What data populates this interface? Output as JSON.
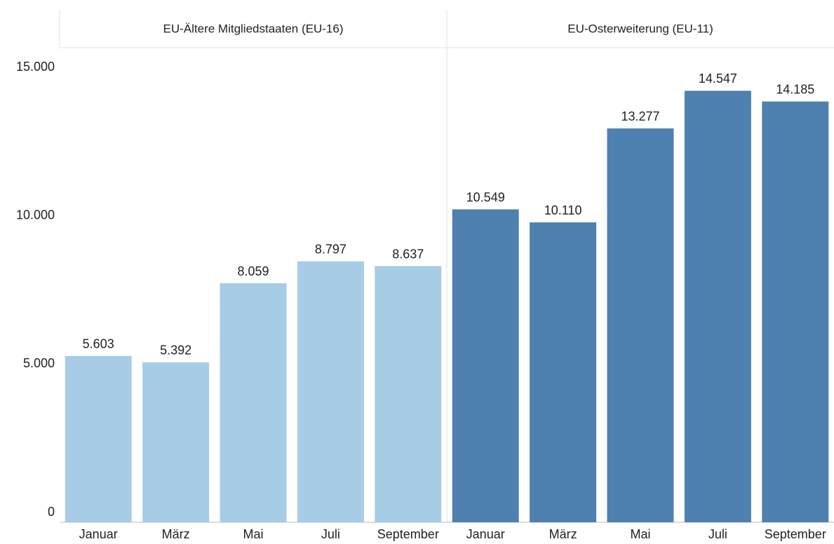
{
  "chart_data": {
    "type": "bar",
    "ylim": [
      0,
      16000
    ],
    "yticks": [
      0,
      {
        "value": 5000,
        "label": "5.000"
      },
      {
        "value": 10000,
        "label": "10.000"
      },
      {
        "value": 15000,
        "label": "15.000"
      }
    ],
    "panels": [
      {
        "title": "EU-Ältere Mitgliedstaaten (EU-16)",
        "color": "#a6cce6",
        "categories": [
          "Januar",
          "März",
          "Mai",
          "Juli",
          "September"
        ],
        "values": [
          5603,
          5392,
          8059,
          8797,
          8637
        ],
        "value_labels": [
          "5.603",
          "5.392",
          "8.059",
          "8.797",
          "8.637"
        ]
      },
      {
        "title": "EU-Osterweiterung (EU-11)",
        "color": "#4e80b0",
        "categories": [
          "Januar",
          "März",
          "Mai",
          "Juli",
          "September"
        ],
        "values": [
          10549,
          10110,
          13277,
          14547,
          14185
        ],
        "value_labels": [
          "10.549",
          "10.110",
          "13.277",
          "14.547",
          "14.185"
        ]
      }
    ]
  }
}
